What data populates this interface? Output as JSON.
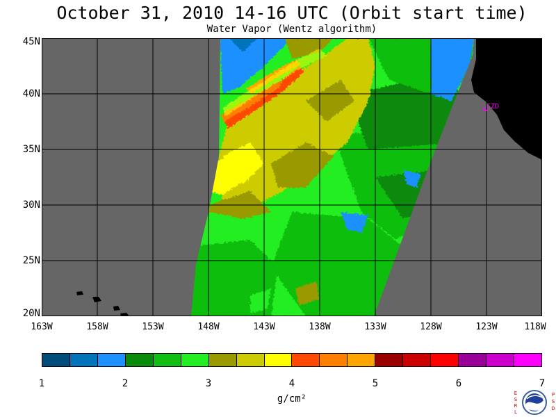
{
  "header": {
    "title": "October 31, 2010  14-16 UTC  (Orbit start time)",
    "subtitle": "Water Vapor (Wentz algorithm)"
  },
  "map": {
    "latitude_labels": [
      "45N",
      "40N",
      "35N",
      "30N",
      "25N",
      "20N"
    ],
    "longitude_labels": [
      "163W",
      "158W",
      "153W",
      "148W",
      "143W",
      "138W",
      "133W",
      "128W",
      "123W",
      "118W"
    ],
    "station_label": "CZD",
    "colors": {
      "land": "#000000",
      "no_data": "#666666",
      "grid": "#000000",
      "station": "#ff00ff"
    }
  },
  "colorbar": {
    "tick_labels": [
      "1",
      "2",
      "3",
      "4",
      "5",
      "6",
      "7"
    ],
    "units": "g/cm²",
    "colors": [
      "#004c7a",
      "#0073bb",
      "#1e90ff",
      "#0a8a0a",
      "#11be11",
      "#22ee22",
      "#999900",
      "#cccc00",
      "#ffff00",
      "#ff4800",
      "#ff7f00",
      "#ffa500",
      "#990000",
      "#cc0000",
      "#ff0000",
      "#990099",
      "#cc00cc",
      "#ff00ff"
    ]
  },
  "logo": {
    "left_text": "ESRL",
    "right_text": "PSD",
    "center_text": "NOAA"
  }
}
